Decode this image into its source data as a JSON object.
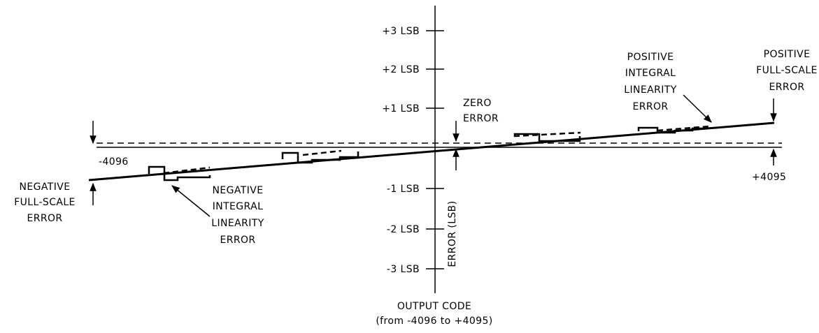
{
  "title": "",
  "y_axis": {
    "label": "ERROR (LSB)",
    "ticks": [
      "+3 LSB",
      "+2 LSB",
      "+1 LSB",
      "-1 LSB",
      "-2 LSB",
      "-3 LSB"
    ]
  },
  "x_axis": {
    "label_line1": "OUTPUT CODE",
    "label_line2": "(from -4096 to +4095)",
    "min_label": "-4096",
    "max_label": "+4095"
  },
  "annotations": {
    "zero_error": [
      "ZERO",
      "ERROR"
    ],
    "positive_full_scale": [
      "POSITIVE",
      "FULL-SCALE",
      "ERROR"
    ],
    "positive_integral": [
      "POSITIVE",
      "INTEGRAL",
      "LINEARITY",
      "ERROR"
    ],
    "negative_full_scale": [
      "NEGATIVE",
      "FULL-SCALE",
      "ERROR"
    ],
    "negative_integral": [
      "NEGATIVE",
      "INTEGRAL",
      "LINEARITY",
      "ERROR"
    ]
  }
}
